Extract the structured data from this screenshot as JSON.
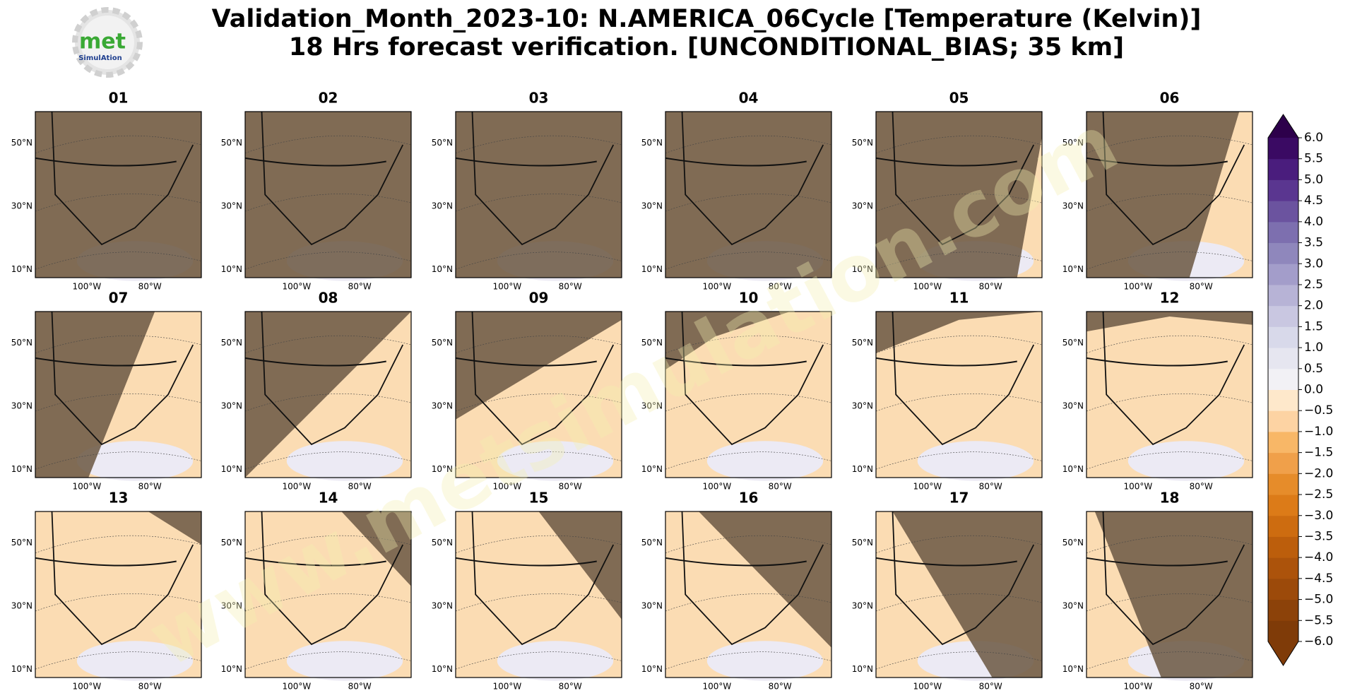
{
  "header": {
    "title_line1": "Validation_Month_2023-10: N.AMERICA_06Cycle [Temperature (Kelvin)]",
    "title_line2": "18 Hrs forecast verification. [UNCONDITIONAL_BIAS; 35 km]"
  },
  "logo": {
    "text": "met",
    "subtext": "SimulAtion"
  },
  "watermark": "www.metsimulation.com",
  "panels": [
    "01",
    "02",
    "03",
    "04",
    "05",
    "06",
    "07",
    "08",
    "09",
    "10",
    "11",
    "12",
    "13",
    "14",
    "15",
    "16",
    "17",
    "18"
  ],
  "map_labels": {
    "lat": [
      "50°N",
      "30°N",
      "10°N"
    ],
    "lon": [
      "100°W",
      "80°W"
    ]
  },
  "colorbar": {
    "lim": [
      -6,
      6
    ],
    "ticks": [
      {
        "value": -6,
        "label": "−6.0"
      },
      {
        "value": -5.5,
        "label": "−5.5"
      },
      {
        "value": -5,
        "label": "−5.0"
      },
      {
        "value": -4.5,
        "label": "−4.5"
      },
      {
        "value": -4,
        "label": "−4.0"
      },
      {
        "value": -3.5,
        "label": "−3.5"
      },
      {
        "value": -3,
        "label": "−3.0"
      },
      {
        "value": -2.5,
        "label": "−2.5"
      },
      {
        "value": -2,
        "label": "−2.0"
      },
      {
        "value": -1.5,
        "label": "−1.5"
      },
      {
        "value": -1,
        "label": "−1.0"
      },
      {
        "value": -0.5,
        "label": "−0.5"
      },
      {
        "value": 0,
        "label": "0.0"
      },
      {
        "value": 0.5,
        "label": "0.5"
      },
      {
        "value": 1,
        "label": "1.0"
      },
      {
        "value": 1.5,
        "label": "1.5"
      },
      {
        "value": 2,
        "label": "2.0"
      },
      {
        "value": 2.5,
        "label": "2.5"
      },
      {
        "value": 3,
        "label": "3.0"
      },
      {
        "value": 3.5,
        "label": "3.5"
      },
      {
        "value": 4,
        "label": "4.0"
      },
      {
        "value": 4.5,
        "label": "4.5"
      },
      {
        "value": 5,
        "label": "5.0"
      },
      {
        "value": 5.5,
        "label": "5.5"
      },
      {
        "value": 6,
        "label": "6.0"
      }
    ],
    "colors": [
      "#7f3b08",
      "#8c4209",
      "#9c4a0a",
      "#ac530b",
      "#bc5e0c",
      "#cd6c10",
      "#dc7b18",
      "#e68c2a",
      "#f0a04a",
      "#f8b767",
      "#fdd3a3",
      "#fee8cb",
      "#f2f1f5",
      "#e6e6f0",
      "#d8d9ea",
      "#c9c7e1",
      "#b7b3d6",
      "#a39dca",
      "#8f87bc",
      "#7d6faf",
      "#6b539f",
      "#5a3690",
      "#4a1d7d",
      "#3a0a63"
    ],
    "under": "#7f3b08",
    "over": "#2d004b"
  }
}
